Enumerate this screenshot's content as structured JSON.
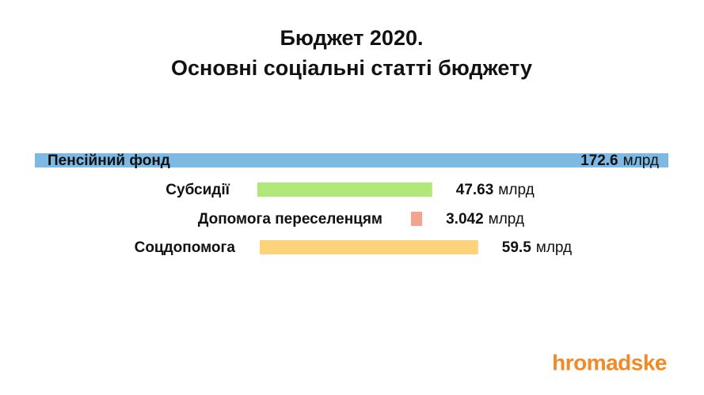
{
  "chart_data": {
    "type": "bar",
    "orientation": "horizontal",
    "title": "Бюджет 2020.",
    "subtitle": "Основні соціальні статті бюджету",
    "categories": [
      "Пенсійний фонд",
      "Субсидії",
      "Допомога переселенцям",
      "Соцдопомога"
    ],
    "values": [
      172.6,
      47.63,
      3.042,
      59.5
    ],
    "unit": "млрд",
    "colors": [
      "#7db9e3",
      "#b1e87a",
      "#f4a48e",
      "#fcd27a"
    ],
    "logo": "hromadske"
  }
}
